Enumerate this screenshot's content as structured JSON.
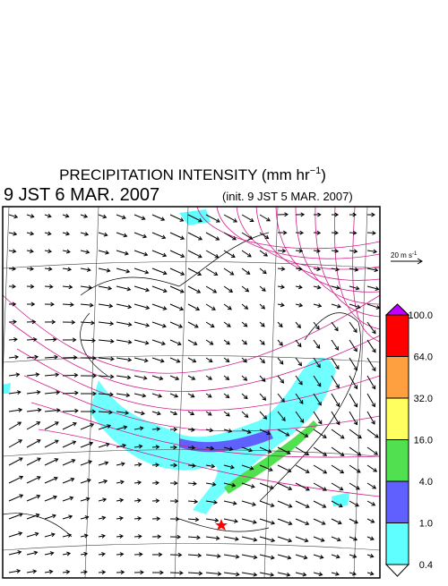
{
  "header": {
    "title": "PRECIPITATION INTENSITY (mm hr",
    "title_exponent": "−1",
    "title_close": ")",
    "valid_time": "9 JST 6 MAR. 2007",
    "init_time": "(init. 9 JST 5 MAR. 2007)"
  },
  "vector_key": {
    "label": "20 m s",
    "exponent": "-1"
  },
  "colorbar": {
    "labels": [
      "100.0",
      "64.0",
      "32.0",
      "16.0",
      "4.0",
      "1.0",
      "0.4"
    ],
    "colors": [
      "#ff0000",
      "#ffa040",
      "#ffff60",
      "#50e050",
      "#6060ff",
      "#60ffff"
    ],
    "over_color": "#c000ff",
    "under_color": "#ffffff"
  }
}
